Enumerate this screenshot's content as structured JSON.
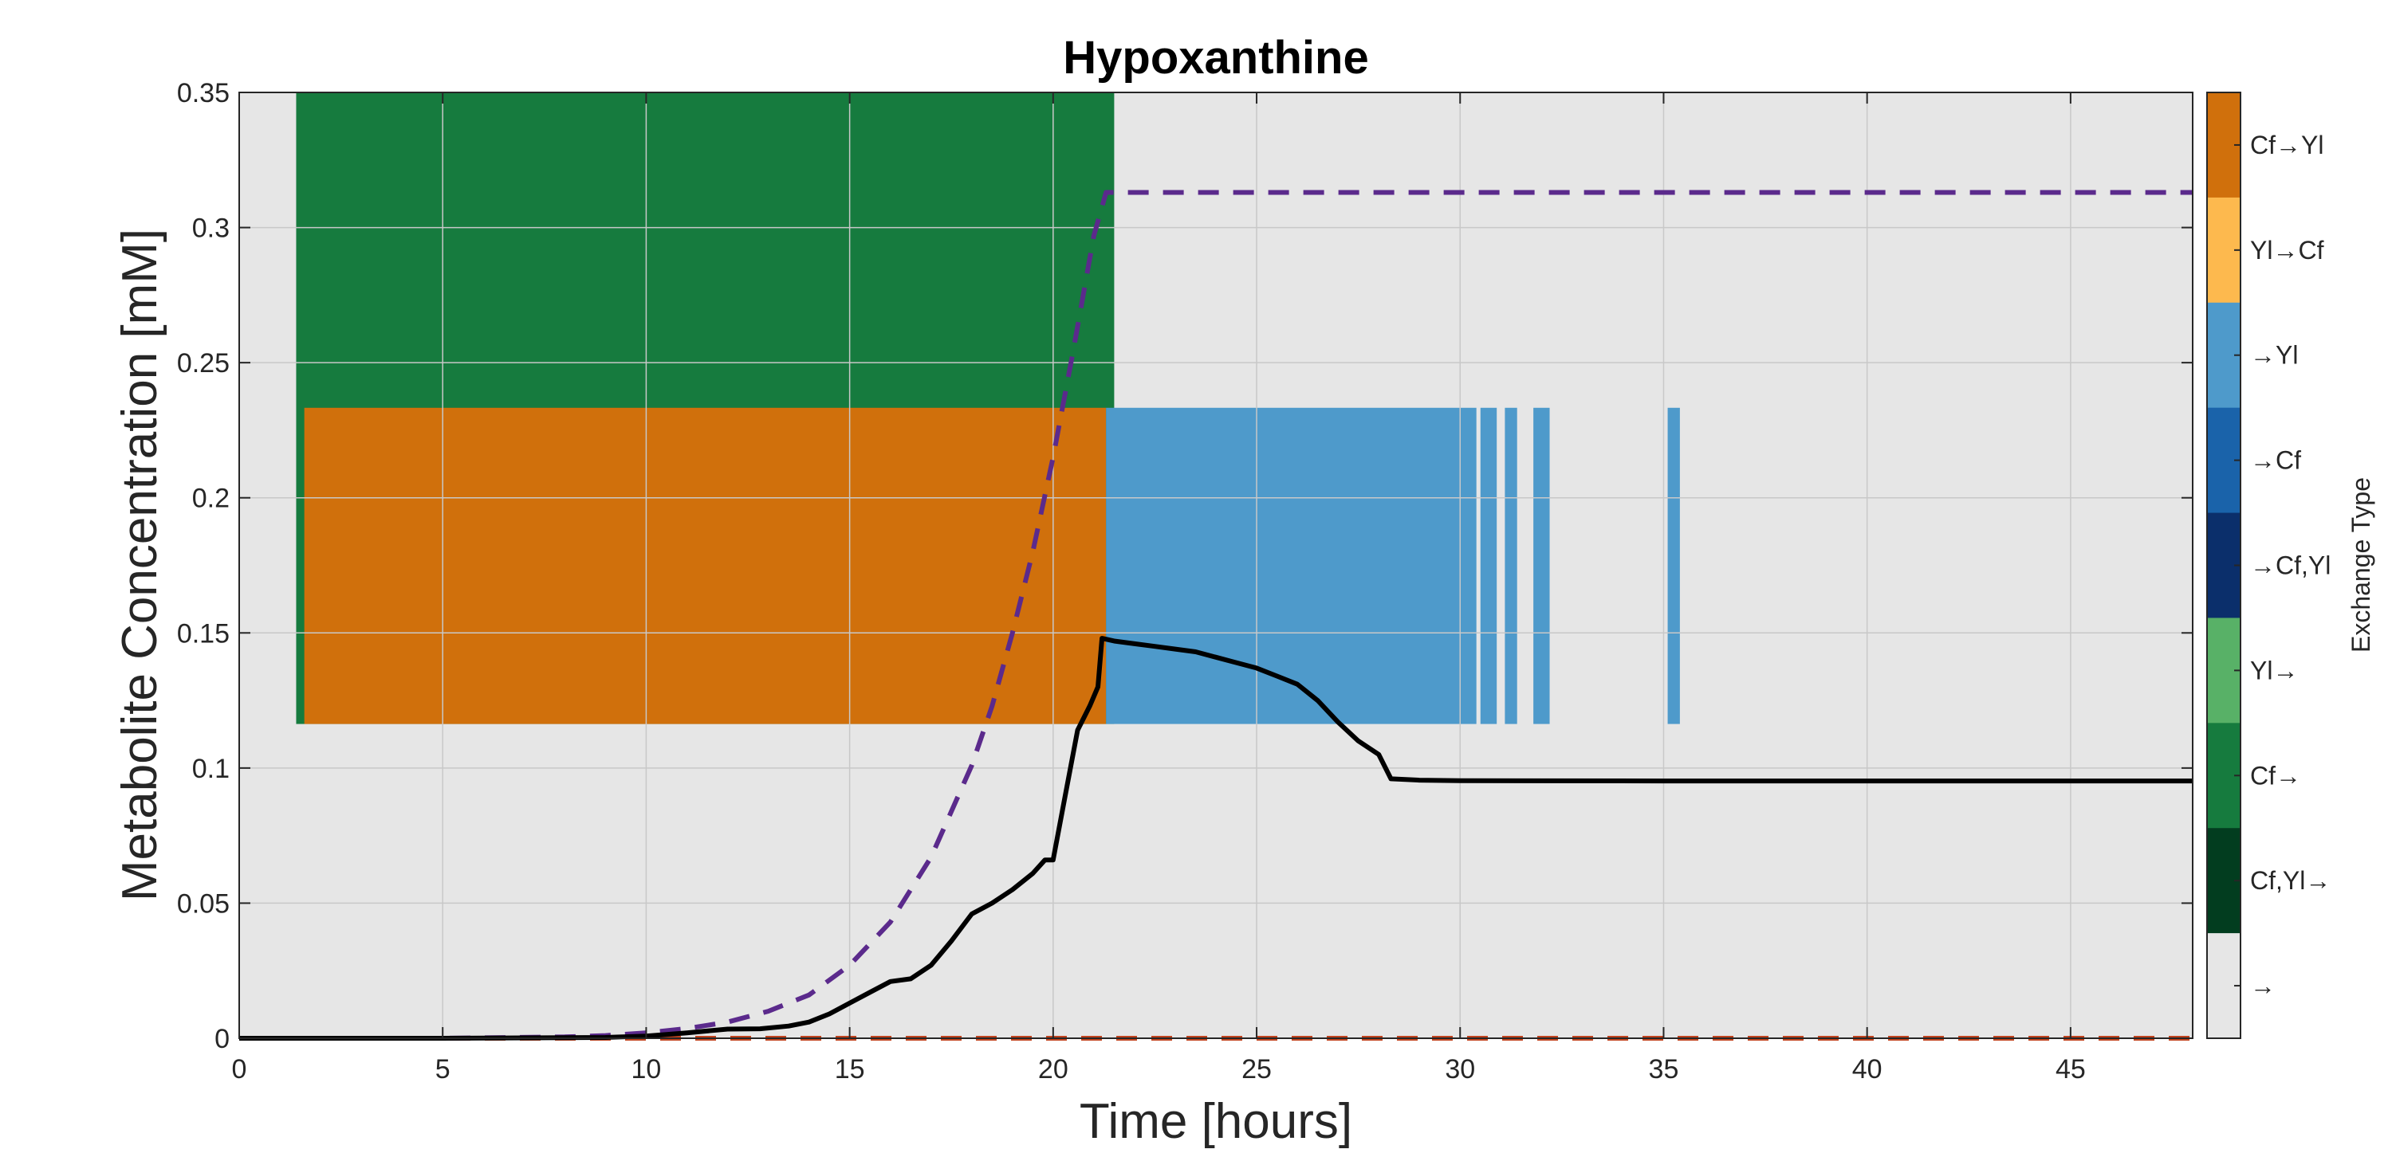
{
  "chart_data": {
    "type": "line",
    "title": "Hypoxanthine",
    "xlabel": "Time [hours]",
    "ylabel": "Metabolite Concentration [mM]",
    "xlim": [
      0,
      48
    ],
    "ylim": [
      0,
      0.35
    ],
    "xticks": [
      "0",
      "5",
      "10",
      "15",
      "20",
      "25",
      "30",
      "35",
      "40",
      "45"
    ],
    "yticks": [
      "0",
      "0.05",
      "0.1",
      "0.15",
      "0.2",
      "0.25",
      "0.3",
      "0.35"
    ],
    "grid": true,
    "background_color": "#e6e6e6",
    "exchange_bands": [
      {
        "label": "Cf→",
        "color": "#167b3e",
        "y_range": [
          0.1163,
          0.35
        ],
        "intervals": [
          [
            1.4,
            21.5
          ]
        ]
      },
      {
        "label": "Cf→Yl",
        "color": "#d0700c",
        "y_range": [
          0.1163,
          0.2333
        ],
        "intervals": [
          [
            1.6,
            21.3
          ]
        ]
      },
      {
        "label": "→Yl",
        "color": "#4e9acb",
        "y_range": [
          0.1163,
          0.2333
        ],
        "intervals": [
          [
            21.3,
            30.4
          ],
          [
            30.5,
            30.9
          ],
          [
            31.1,
            31.4
          ],
          [
            31.8,
            32.2
          ],
          [
            35.1,
            35.4
          ]
        ]
      }
    ],
    "series": [
      {
        "name": "concentration",
        "color": "#000000",
        "style": "solid",
        "x": [
          0,
          5,
          9,
          10,
          11,
          12,
          12.8,
          13.5,
          14,
          14.5,
          15,
          15.5,
          16,
          16.5,
          17,
          17.5,
          18,
          18.5,
          19,
          19.5,
          19.8,
          20,
          20.3,
          20.6,
          20.9,
          21.1,
          21.2,
          21.5,
          22,
          22.5,
          23,
          23.5,
          24,
          24.5,
          25,
          25.5,
          26,
          26.5,
          27,
          27.5,
          28,
          28.3,
          29,
          30,
          35,
          48
        ],
        "y": [
          0,
          0,
          0.0003,
          0.0008,
          0.002,
          0.0034,
          0.0035,
          0.0045,
          0.006,
          0.009,
          0.013,
          0.017,
          0.021,
          0.022,
          0.027,
          0.036,
          0.046,
          0.05,
          0.055,
          0.061,
          0.066,
          0.066,
          0.09,
          0.114,
          0.123,
          0.13,
          0.148,
          0.147,
          0.146,
          0.145,
          0.144,
          0.143,
          0.141,
          0.139,
          0.137,
          0.134,
          0.131,
          0.125,
          0.117,
          0.11,
          0.105,
          0.096,
          0.0955,
          0.0953,
          0.0952,
          0.0952
        ]
      },
      {
        "name": "model-dashed-purple",
        "color": "#5b2a8c",
        "style": "dashed",
        "x": [
          0,
          5,
          8,
          9,
          10,
          11,
          12,
          13,
          14,
          15,
          16,
          17,
          18,
          18.5,
          19,
          19.5,
          20,
          20.5,
          21,
          21.3,
          21.5,
          48
        ],
        "y": [
          0,
          0,
          0.0005,
          0.001,
          0.002,
          0.0036,
          0.006,
          0.01,
          0.016,
          0.027,
          0.043,
          0.067,
          0.101,
          0.123,
          0.15,
          0.18,
          0.215,
          0.255,
          0.297,
          0.313,
          0.313,
          0.313
        ]
      },
      {
        "name": "model-dashed-orange",
        "color": "#c2431e",
        "style": "dashed",
        "x": [
          0,
          48
        ],
        "y": [
          0,
          0
        ]
      }
    ],
    "colorbar": {
      "title": "Exchange Type",
      "categories": [
        {
          "label": "Cf→Yl",
          "color": "#d0700c"
        },
        {
          "label": "Yl→Cf",
          "color": "#fdb94e"
        },
        {
          "label": "→Yl",
          "color": "#4e9acb"
        },
        {
          "label": "→Cf",
          "color": "#1a63aa"
        },
        {
          "label": "→Cf,Yl",
          "color": "#0b2f6b"
        },
        {
          "label": "Yl→",
          "color": "#58b167"
        },
        {
          "label": "Cf→",
          "color": "#167b3e"
        },
        {
          "label": "Cf,Yl→",
          "color": "#023d1f"
        },
        {
          "label": "→",
          "color": "#e6e6e6"
        }
      ]
    }
  }
}
